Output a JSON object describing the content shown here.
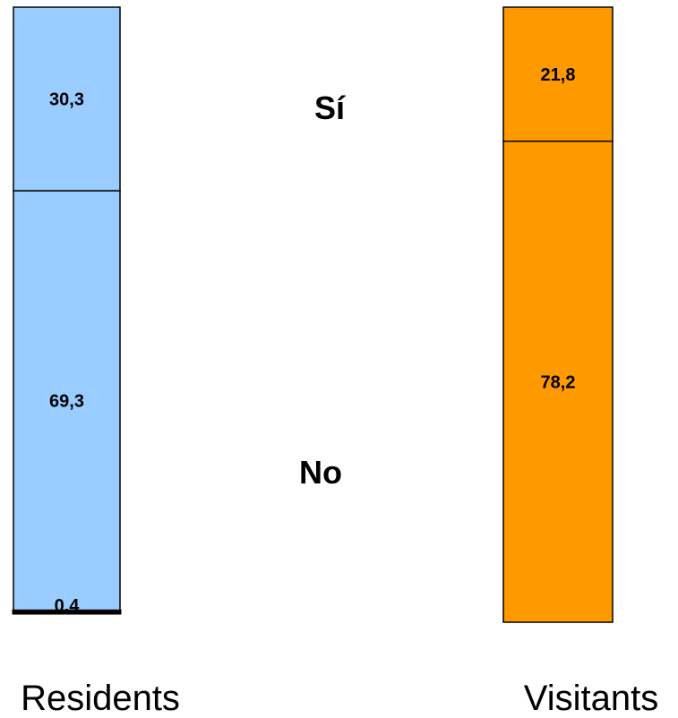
{
  "chart_data": {
    "type": "bar",
    "stacked": true,
    "normalized": true,
    "categories": [
      "Residents",
      "Visitants"
    ],
    "series": [
      {
        "name": "Sí",
        "values": [
          30.3,
          21.8
        ],
        "labels": [
          "30,3",
          "21,8"
        ]
      },
      {
        "name": "No",
        "values": [
          69.3,
          78.2
        ],
        "labels": [
          "69,3",
          "78,2"
        ]
      },
      {
        "name": "",
        "values": [
          0.4,
          null
        ],
        "labels": [
          "0,4",
          ""
        ]
      }
    ],
    "colors": {
      "Residents": "#99ccff",
      "Visitants": "#ff9900"
    },
    "legend": "middle, between bars",
    "ylim": [
      0,
      100
    ],
    "grid": false
  }
}
